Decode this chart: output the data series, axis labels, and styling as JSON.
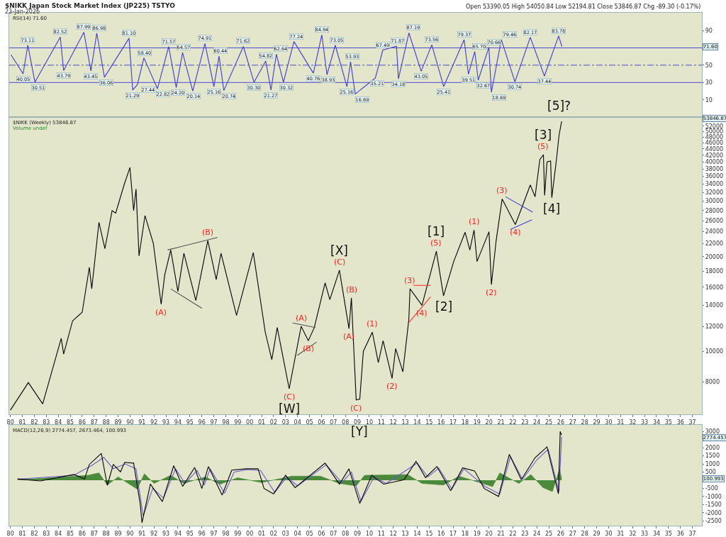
{
  "chart_data": [
    {
      "type": "line",
      "title": "$NIKK Japan Stock Market Index (JP225) TSTYO",
      "subtitle": "23-Jan-2026",
      "annotations": [
        "RSI(14) 71.60",
        "Open 53390.05 High 54050.84 Low 52194.81 Close 53846.87 Chg -89.30 (-0.17%)",
        "[5]?",
        "71.60"
      ],
      "series": [
        {
          "color": "#3c3cd8",
          "x": [
            1980.05,
            1981.06,
            1981.46,
            1982.05,
            1984.17,
            1984.45,
            1986.14,
            1986.73,
            1987.22,
            1987.86,
            1989.92,
            1990.22,
            1990.61,
            1991.16,
            1992.29,
            1993.23,
            1993.86,
            1994.39,
            1995.24,
            1996.26,
            1997.01,
            1997.44,
            1997.84,
            1999.47,
            2000.36,
            2001.34,
            2001.78,
            2002.23,
            2002.82,
            2003.7,
            2005.32,
            2006.03,
            2006.46,
            2007.15,
            2008.13,
            2008.43,
            2008.82,
            2010.5,
            2011.13,
            2012.27,
            2012.43,
            2013.31,
            2014.33,
            2015.22,
            2016.21,
            2017.92,
            2018.28,
            2018.81,
            2019.1,
            2019.99,
            2020.2,
            2021.03,
            2022.17,
            2023.45,
            2024.63,
            2025.82,
            2026.09
          ],
          "values": [
            62,
            40.05,
            73.11,
            30.51,
            82.52,
            43.79,
            87.99,
            43.45,
            86.98,
            36.06,
            81.1,
            21.29,
            27.44,
            58.4,
            22.82,
            71.57,
            24.2,
            64.57,
            20.14,
            74.91,
            25.16,
            60.44,
            20.74,
            71.62,
            30.3,
            54.82,
            21.27,
            62.64,
            30.32,
            77.24,
            40.76,
            84.94,
            38.93,
            73.05,
            25.16,
            53.93,
            16.69,
            35.21,
            67.49,
            71.87,
            34.18,
            87.19,
            43.05,
            73.56,
            25.41,
            79.37,
            39.51,
            65.7,
            32.67,
            70.66,
            18.69,
            79.46,
            30.74,
            82.17,
            37.44,
            83.78,
            71.6
          ],
          "value_labels": [
            null,
            "40.05",
            "73.11",
            "30.51",
            "82.52",
            "43.79",
            "87.99",
            "43.45",
            "86.98",
            "36.06",
            "81.10",
            "21.29",
            "27.44",
            "58.40",
            "22.82",
            "71.57",
            "24.20",
            "64.57",
            "20.14",
            "74.91",
            "25.16",
            "60.44",
            "20.74",
            "71.62",
            "30.30",
            "54.82",
            "21.27",
            "62.64",
            "30.32",
            "77.24",
            "40.76",
            "84.94",
            "38.93",
            "73.05",
            "25.16",
            "53.93",
            "16.69",
            "35.21",
            "67.49",
            "71.87",
            "34.18",
            "87.19",
            "43.05",
            "73.56",
            "25.41",
            "79.37",
            "39.51",
            "65.70",
            "32.67",
            "70.66",
            "18.69",
            "79.46",
            "30.74",
            "82.17",
            "37.44",
            "83.78",
            null
          ]
        }
      ],
      "ref_lines": [
        {
          "axis": "y",
          "value": 70,
          "color": "#4a4ad0",
          "line_style": "solid"
        },
        {
          "axis": "y",
          "value": 50,
          "color": "#4a4ad0",
          "line_style": "dashed"
        },
        {
          "axis": "y",
          "value": 30,
          "color": "#4a4ad0",
          "line_style": "solid"
        }
      ],
      "xlim": [
        1979.9,
        2037.8
      ],
      "ylim": [
        -9.8,
        110.6
      ],
      "yticks": [
        10,
        30,
        50,
        90
      ],
      "tick_labels": "y"
    },
    {
      "type": "line",
      "log": "y",
      "annotations": [
        "$NIKK (Weekly) 53846.87",
        "Volume undef",
        {
          "text": "(A)",
          "x": 1992.6,
          "y": 14100
        },
        {
          "text": "(B)",
          "x": 1996.5,
          "y": 22500
        },
        {
          "text": "(A)",
          "x": 2004.3,
          "y": 12000
        },
        {
          "text": "(B)",
          "x": 2004.9,
          "y": 10800
        },
        {
          "text": "(C)",
          "x": 2003.3,
          "y": 7600
        },
        {
          "text": "[W]",
          "x": 2003.3,
          "y": 7600
        },
        {
          "text": "(C)",
          "x": 2007.5,
          "y": 18100
        },
        {
          "text": "[X]",
          "x": 2007.5,
          "y": 18100
        },
        {
          "text": "(B)",
          "x": 2008.5,
          "y": 14800
        },
        {
          "text": "(A)",
          "x": 2008.3,
          "y": 11800
        },
        {
          "text": "(C)",
          "x": 2008.9,
          "y": 7000
        },
        {
          "text": "(1)",
          "x": 2010.25,
          "y": 11500
        },
        {
          "text": "(2)",
          "x": 2011.9,
          "y": 8200
        },
        {
          "text": "(3)",
          "x": 2013.4,
          "y": 15800
        },
        {
          "text": "(4)",
          "x": 2014.4,
          "y": 14000
        },
        {
          "text": "(5)",
          "x": 2015.6,
          "y": 20800
        },
        {
          "text": "[1]",
          "x": 2015.6,
          "y": 20800
        },
        {
          "text": "[2]",
          "x": 2016.2,
          "y": 15000
        },
        {
          "text": "(1)",
          "x": 2018.75,
          "y": 24300
        },
        {
          "text": "(2)",
          "x": 2020.2,
          "y": 16300
        },
        {
          "text": "(3)",
          "x": 2021.1,
          "y": 30500
        },
        {
          "text": "(4)",
          "x": 2022.2,
          "y": 25300
        },
        {
          "text": "(5)",
          "x": 2024.55,
          "y": 42200
        },
        {
          "text": "[3]",
          "x": 2024.55,
          "y": 42200
        },
        {
          "text": "[4]",
          "x": 2025.25,
          "y": 30800
        },
        "53846.87"
      ],
      "series": [
        {
          "color": "#000000",
          "x": [
            1980.0,
            1981.5,
            1982.7,
            1984.25,
            1984.45,
            1985.2,
            1986.0,
            1986.6,
            1986.8,
            1987.4,
            1987.9,
            1988.5,
            1988.8,
            1989.5,
            1989.99,
            1990.3,
            1990.5,
            1990.75,
            1991.25,
            1991.95,
            1992.6,
            1992.9,
            1993.4,
            1994.0,
            1994.5,
            1995.5,
            1996.5,
            1997.2,
            1997.6,
            1998.9,
            2000.3,
            2001.3,
            2001.85,
            2002.3,
            2003.3,
            2004.3,
            2004.9,
            2005.4,
            2006.3,
            2006.7,
            2007.5,
            2008.3,
            2008.5,
            2008.9,
            2009.2,
            2009.5,
            2010.25,
            2010.75,
            2011.15,
            2011.9,
            2012.2,
            2012.8,
            2013.3,
            2013.4,
            2014.4,
            2015.6,
            2016.2,
            2017.05,
            2018.0,
            2018.4,
            2018.75,
            2019.0,
            2020.0,
            2020.2,
            2020.6,
            2021.1,
            2022.2,
            2022.8,
            2023.45,
            2023.85,
            2024.25,
            2024.55,
            2024.65,
            2024.85,
            2025.15,
            2025.25,
            2025.65,
            2025.85,
            2026.07
          ],
          "values": [
            6500,
            7950,
            6800,
            11000,
            9800,
            12500,
            13300,
            18500,
            15800,
            25700,
            21200,
            28000,
            27500,
            33800,
            38400,
            28000,
            32800,
            20100,
            27000,
            22000,
            14100,
            17500,
            21000,
            15500,
            20500,
            14500,
            22500,
            16900,
            20500,
            13000,
            20600,
            11500,
            9400,
            11900,
            7600,
            12000,
            10800,
            11900,
            16500,
            14600,
            18100,
            11800,
            14800,
            7000,
            7050,
            10000,
            11500,
            9200,
            10800,
            8200,
            10200,
            8600,
            12600,
            15800,
            14000,
            20800,
            15000,
            19300,
            23900,
            21000,
            24300,
            19300,
            24000,
            16300,
            22500,
            30500,
            25300,
            29000,
            33800,
            31000,
            40700,
            42200,
            31300,
            40000,
            40300,
            30800,
            41000,
            48500,
            53846.87
          ]
        },
        {
          "color": "#505050",
          "x": [
            1993.14,
            1997.3
          ],
          "values": [
            21000,
            23000
          ]
        },
        {
          "color": "#505050",
          "x": [
            1993.4,
            1996.0
          ],
          "values": [
            15800,
            13700
          ]
        },
        {
          "color": "#505050",
          "x": [
            2003.58,
            2005.5
          ],
          "values": [
            12300,
            11900
          ]
        },
        {
          "color": "#505050",
          "x": [
            2003.97,
            2005.6
          ],
          "values": [
            9700,
            10700
          ]
        },
        {
          "color": "#ff3030",
          "x": [
            2013.7,
            2015.1
          ],
          "values": [
            16200,
            16200
          ]
        },
        {
          "color": "#ff3030",
          "x": [
            2013.27,
            2015.12
          ],
          "values": [
            12300,
            14900
          ]
        },
        {
          "color": "#4040e0",
          "x": [
            2021.39,
            2023.65
          ],
          "values": [
            31000,
            27700
          ]
        },
        {
          "color": "#4040e0",
          "x": [
            2021.78,
            2023.6
          ],
          "values": [
            24400,
            26200
          ]
        }
      ],
      "xlim": [
        1979.9,
        2037.8
      ],
      "ylim": [
        6300,
        55600
      ],
      "yticks": [
        8000,
        10000,
        12000,
        14000,
        16000,
        18000,
        20000,
        22000,
        24000,
        26000,
        28000,
        30000,
        32000,
        34000,
        36000,
        38000,
        40000,
        42000,
        44000,
        46000,
        48000,
        50000,
        52000
      ],
      "xticks": [
        {
          "value": 1980,
          "label": "80"
        },
        {
          "value": 1981,
          "label": "81"
        },
        {
          "value": 1982,
          "label": "82"
        },
        {
          "value": 1983,
          "label": "83"
        },
        {
          "value": 1984,
          "label": "84"
        },
        {
          "value": 1985,
          "label": "85"
        },
        {
          "value": 1986,
          "label": "86"
        },
        {
          "value": 1987,
          "label": "87"
        },
        {
          "value": 1988,
          "label": "88"
        },
        {
          "value": 1989,
          "label": "89"
        },
        {
          "value": 1990,
          "label": "90"
        },
        {
          "value": 1991,
          "label": "91"
        },
        {
          "value": 1992,
          "label": "92"
        },
        {
          "value": 1993,
          "label": "93"
        },
        {
          "value": 1994,
          "label": "94"
        },
        {
          "value": 1995,
          "label": "95"
        },
        {
          "value": 1996,
          "label": "96"
        },
        {
          "value": 1997,
          "label": "97"
        },
        {
          "value": 1998,
          "label": "98"
        },
        {
          "value": 1999,
          "label": "99"
        },
        {
          "value": 2000,
          "label": "00"
        },
        {
          "value": 2001,
          "label": "01"
        },
        {
          "value": 2002,
          "label": "02"
        },
        {
          "value": 2003,
          "label": "03"
        },
        {
          "value": 2004,
          "label": "04"
        },
        {
          "value": 2005,
          "label": "05"
        },
        {
          "value": 2006,
          "label": "06"
        },
        {
          "value": 2007,
          "label": "07"
        },
        {
          "value": 2008,
          "label": "08"
        },
        {
          "value": 2009,
          "label": "09"
        },
        {
          "value": 2010,
          "label": "10"
        },
        {
          "value": 2011,
          "label": "11"
        },
        {
          "value": 2012,
          "label": "12"
        },
        {
          "value": 2013,
          "label": "13"
        },
        {
          "value": 2014,
          "label": "14"
        },
        {
          "value": 2015,
          "label": "15"
        },
        {
          "value": 2016,
          "label": "16"
        },
        {
          "value": 2017,
          "label": "17"
        },
        {
          "value": 2018,
          "label": "18"
        },
        {
          "value": 2019,
          "label": "19"
        },
        {
          "value": 2020,
          "label": "20"
        },
        {
          "value": 2021,
          "label": "21"
        },
        {
          "value": 2022,
          "label": "22"
        },
        {
          "value": 2023,
          "label": "23"
        },
        {
          "value": 2024,
          "label": "24"
        },
        {
          "value": 2025,
          "label": "25"
        },
        {
          "value": 2026,
          "label": "26"
        },
        {
          "value": 2027,
          "label": "27"
        },
        {
          "value": 2028,
          "label": "28"
        },
        {
          "value": 2029,
          "label": "29"
        },
        {
          "value": 2030,
          "label": "30"
        },
        {
          "value": 2031,
          "label": "31"
        },
        {
          "value": 2032,
          "label": "32"
        },
        {
          "value": 2033,
          "label": "33"
        },
        {
          "value": 2034,
          "label": "34"
        },
        {
          "value": 2035,
          "label": "35"
        },
        {
          "value": 2036,
          "label": "36"
        },
        {
          "value": 2037,
          "label": "37"
        }
      ]
    },
    {
      "type": "line",
      "annotations": [
        "MACD(12,26,9) 2774.457, 2673.464, 100.993",
        "[Y]",
        "2774.457",
        "100.993"
      ],
      "series": [
        {
          "type": "area",
          "color": "#4a8a3a",
          "x": [
            1980.6,
            1986.5,
            1987.4,
            1988.1,
            1989.0,
            1990.6,
            1991.2,
            1992.0,
            1993.4,
            1994.5,
            1996.3,
            1997.5,
            1999.0,
            2001.0,
            2003.5,
            2005.9,
            2007.5,
            2008.9,
            2009.6,
            2013.2,
            2014.4,
            2016.2,
            2017.5,
            2020.3,
            2020.9,
            2022.5,
            2023.5,
            2024.5,
            2025.3,
            2025.9,
            2026.07
          ],
          "values": [
            20,
            300,
            450,
            -300,
            200,
            -550,
            400,
            -200,
            300,
            -200,
            200,
            -250,
            150,
            -150,
            250,
            250,
            -200,
            -350,
            300,
            350,
            -200,
            -300,
            250,
            -400,
            450,
            -200,
            350,
            -450,
            -700,
            700,
            100.993
          ]
        },
        {
          "color": "#6a5acd",
          "x": [
            1980.6,
            1985.3,
            1986.8,
            1987.8,
            1988.6,
            1989.6,
            1990.5,
            1991.1,
            1991.9,
            1992.8,
            1993.8,
            1994.6,
            1995.6,
            1996.2,
            1996.7,
            1997.9,
            1998.7,
            1999.8,
            2000.9,
            2002.1,
            2003.1,
            2004.0,
            2006.4,
            2007.7,
            2008.5,
            2009.3,
            2010.4,
            2011.4,
            2014.0,
            2014.9,
            2015.8,
            2016.9,
            2017.9,
            2019.7,
            2020.9,
            2021.8,
            2022.8,
            2024.0,
            2024.95,
            2025.85,
            2026.07
          ],
          "values": [
            60,
            300,
            900,
            1400,
            700,
            1000,
            700,
            -2200,
            -500,
            -1100,
            700,
            -200,
            600,
            -300,
            700,
            -800,
            500,
            650,
            600,
            -750,
            200,
            -350,
            950,
            -150,
            500,
            -1300,
            200,
            -200,
            1050,
            200,
            750,
            -550,
            700,
            -400,
            -850,
            1450,
            50,
            1250,
            1900,
            -700,
            2673.464
          ]
        },
        {
          "color": "#000000",
          "x": [
            1980.6,
            1982.5,
            1985.3,
            1986.2,
            1986.6,
            1987.6,
            1988.1,
            1988.6,
            1989.2,
            1989.55,
            1990.3,
            1990.85,
            1991.0,
            1991.7,
            1992.7,
            1993.65,
            1994.4,
            1995.4,
            1996.0,
            1996.55,
            1997.7,
            1998.5,
            1999.7,
            2000.7,
            2001.2,
            2002.0,
            2003.0,
            2003.8,
            2006.3,
            2007.5,
            2008.3,
            2009.2,
            2010.2,
            2011.2,
            2012.9,
            2013.9,
            2014.7,
            2015.65,
            2016.8,
            2017.8,
            2018.8,
            2019.6,
            2020.8,
            2021.7,
            2022.7,
            2023.85,
            2024.85,
            2025.8,
            2025.95,
            2026.07
          ],
          "values": [
            80,
            -50,
            350,
            80,
            970,
            1650,
            -320,
            970,
            510,
            1100,
            1050,
            -1460,
            -2620,
            -240,
            -1320,
            890,
            -380,
            780,
            -510,
            840,
            -920,
            620,
            700,
            700,
            -510,
            -840,
            300,
            -460,
            1050,
            -240,
            700,
            -1430,
            300,
            -240,
            30,
            1160,
            160,
            840,
            -650,
            760,
            570,
            -510,
            -1000,
            1590,
            30,
            1380,
            2050,
            -840,
            3000,
            2774.457
          ]
        }
      ],
      "xlim": [
        1979.9,
        2037.8
      ],
      "ylim": [
        -2800,
        3400
      ],
      "yticks": [
        -2500,
        -2000,
        -1500,
        -1000,
        -500,
        500,
        1000,
        1500,
        2000,
        3000
      ],
      "xticks": [
        {
          "value": 1980,
          "label": "80"
        },
        {
          "value": 1981,
          "label": "81"
        },
        {
          "value": 1982,
          "label": "82"
        },
        {
          "value": 1983,
          "label": "83"
        },
        {
          "value": 1984,
          "label": "84"
        },
        {
          "value": 1985,
          "label": "85"
        },
        {
          "value": 1986,
          "label": "86"
        },
        {
          "value": 1987,
          "label": "87"
        },
        {
          "value": 1988,
          "label": "88"
        },
        {
          "value": 1989,
          "label": "89"
        },
        {
          "value": 1990,
          "label": "90"
        },
        {
          "value": 1991,
          "label": "91"
        },
        {
          "value": 1992,
          "label": "92"
        },
        {
          "value": 1993,
          "label": "93"
        },
        {
          "value": 1994,
          "label": "94"
        },
        {
          "value": 1995,
          "label": "95"
        },
        {
          "value": 1996,
          "label": "96"
        },
        {
          "value": 1997,
          "label": "97"
        },
        {
          "value": 1998,
          "label": "98"
        },
        {
          "value": 1999,
          "label": "99"
        },
        {
          "value": 2000,
          "label": "00"
        },
        {
          "value": 2001,
          "label": "01"
        },
        {
          "value": 2002,
          "label": "02"
        },
        {
          "value": 2003,
          "label": "03"
        },
        {
          "value": 2004,
          "label": "04"
        },
        {
          "value": 2005,
          "label": "05"
        },
        {
          "value": 2006,
          "label": "06"
        },
        {
          "value": 2007,
          "label": "07"
        },
        {
          "value": 2008,
          "label": "08"
        },
        {
          "value": 2009,
          "label": "09"
        },
        {
          "value": 2010,
          "label": "10"
        },
        {
          "value": 2011,
          "label": "11"
        },
        {
          "value": 2012,
          "label": "12"
        },
        {
          "value": 2013,
          "label": "13"
        },
        {
          "value": 2014,
          "label": "14"
        },
        {
          "value": 2015,
          "label": "15"
        },
        {
          "value": 2016,
          "label": "16"
        },
        {
          "value": 2017,
          "label": "17"
        },
        {
          "value": 2018,
          "label": "18"
        },
        {
          "value": 2019,
          "label": "19"
        },
        {
          "value": 2020,
          "label": "20"
        },
        {
          "value": 2021,
          "label": "21"
        },
        {
          "value": 2022,
          "label": "22"
        },
        {
          "value": 2023,
          "label": "23"
        },
        {
          "value": 2024,
          "label": "24"
        },
        {
          "value": 2025,
          "label": "25"
        },
        {
          "value": 2026,
          "label": "26"
        },
        {
          "value": 2027,
          "label": "27"
        },
        {
          "value": 2028,
          "label": "28"
        },
        {
          "value": 2029,
          "label": "29"
        },
        {
          "value": 2030,
          "label": "30"
        },
        {
          "value": 2031,
          "label": "31"
        },
        {
          "value": 2032,
          "label": "32"
        },
        {
          "value": 2033,
          "label": "33"
        },
        {
          "value": 2034,
          "label": "34"
        },
        {
          "value": 2035,
          "label": "35"
        },
        {
          "value": 2036,
          "label": "36"
        },
        {
          "value": 2037,
          "label": "37"
        }
      ]
    }
  ]
}
